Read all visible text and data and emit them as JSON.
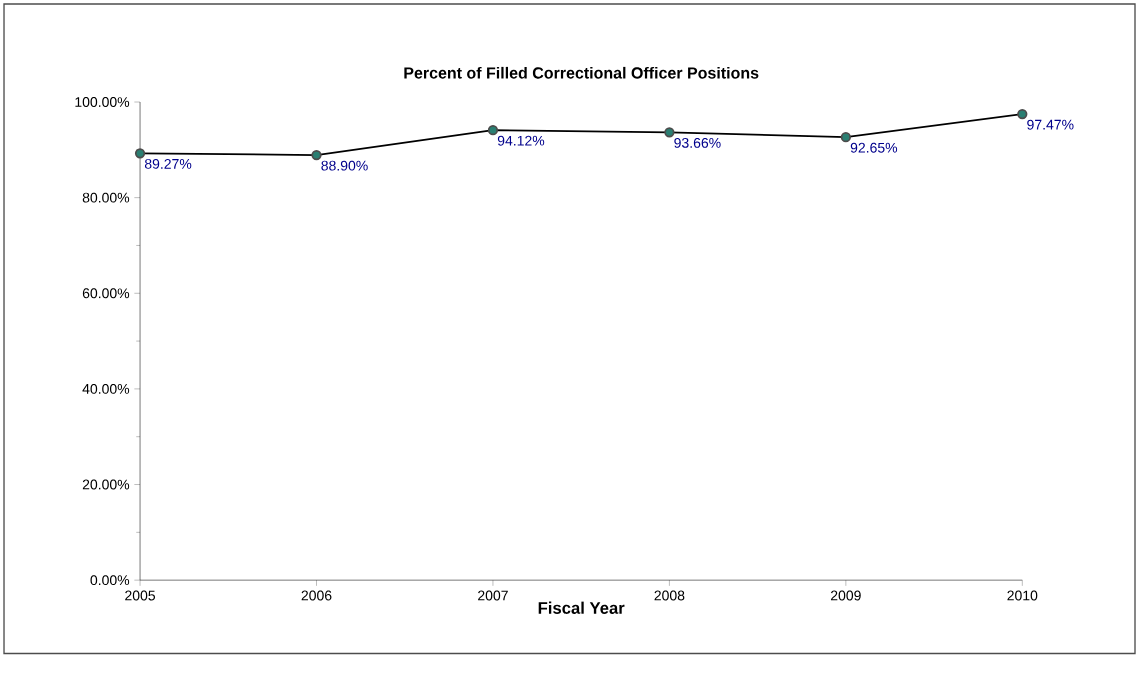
{
  "chart_data": {
    "type": "line",
    "title": "Percent of Filled Correctional Officer Positions",
    "xlabel": "Fiscal Year",
    "categories": [
      "2005",
      "2006",
      "2007",
      "2008",
      "2009",
      "2010"
    ],
    "series": [
      {
        "color": "#2a7f72",
        "values": [
          89.27,
          88.9,
          94.12,
          93.66,
          92.65,
          97.47
        ]
      }
    ],
    "value_labels": [
      "89.27%",
      "88.90%",
      "94.12%",
      "93.66%",
      "92.65%",
      "97.47%"
    ],
    "ylim": [
      0,
      100
    ],
    "yticks": [
      {
        "value": 0,
        "label": "0.00%"
      },
      {
        "value": 20,
        "label": "20.00%"
      },
      {
        "value": 40,
        "label": "40.00%"
      },
      {
        "value": 60,
        "label": "60.00%"
      },
      {
        "value": 80,
        "label": "80.00%"
      },
      {
        "value": 100,
        "label": "100.00%"
      }
    ],
    "marker": "circle",
    "line_style": "solid",
    "grid": false,
    "legend": false
  }
}
